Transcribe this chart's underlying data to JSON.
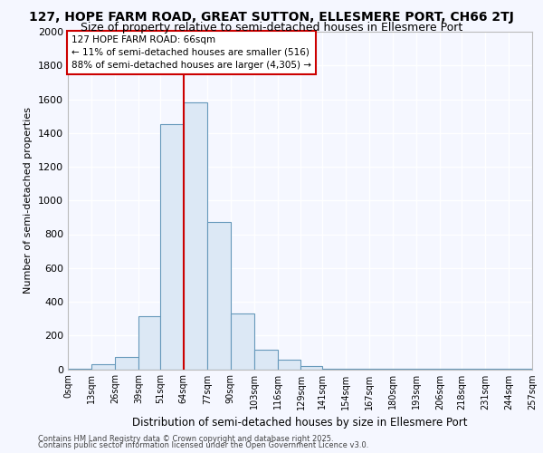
{
  "title_line1": "127, HOPE FARM ROAD, GREAT SUTTON, ELLESMERE PORT, CH66 2TJ",
  "title_line2": "Size of property relative to semi-detached houses in Ellesmere Port",
  "xlabel": "Distribution of semi-detached houses by size in Ellesmere Port",
  "ylabel": "Number of semi-detached properties",
  "footnote1": "Contains HM Land Registry data © Crown copyright and database right 2025.",
  "footnote2": "Contains public sector information licensed under the Open Government Licence v3.0.",
  "annotation_title": "127 HOPE FARM ROAD: 66sqm",
  "annotation_line1": "← 11% of semi-detached houses are smaller (516)",
  "annotation_line2": "88% of semi-detached houses are larger (4,305) →",
  "bin_edges": [
    0,
    13,
    26,
    39,
    51,
    64,
    77,
    90,
    103,
    116,
    129,
    141,
    154,
    167,
    180,
    193,
    206,
    218,
    231,
    244,
    257
  ],
  "bin_labels": [
    "0sqm",
    "13sqm",
    "26sqm",
    "39sqm",
    "51sqm",
    "64sqm",
    "77sqm",
    "90sqm",
    "103sqm",
    "116sqm",
    "129sqm",
    "141sqm",
    "154sqm",
    "167sqm",
    "180sqm",
    "193sqm",
    "206sqm",
    "218sqm",
    "231sqm",
    "244sqm",
    "257sqm"
  ],
  "counts": [
    5,
    30,
    70,
    315,
    1450,
    1580,
    875,
    330,
    115,
    55,
    20,
    5,
    5,
    3,
    2,
    2,
    2,
    2,
    2,
    2
  ],
  "bar_color": "#dce8f5",
  "bar_edge_color": "#6699bb",
  "vline_color": "#cc0000",
  "vline_x": 64,
  "ylim": [
    0,
    2000
  ],
  "yticks": [
    0,
    200,
    400,
    600,
    800,
    1000,
    1200,
    1400,
    1600,
    1800,
    2000
  ],
  "background_color": "#f5f7ff",
  "grid_color": "#ffffff",
  "annotation_box_facecolor": "#ffffff",
  "annotation_box_edge": "#cc0000",
  "title_fontsize": 10,
  "subtitle_fontsize": 9
}
